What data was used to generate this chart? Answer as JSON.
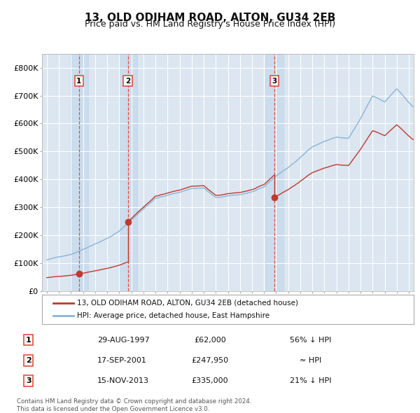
{
  "title": "13, OLD ODIHAM ROAD, ALTON, GU34 2EB",
  "subtitle": "Price paid vs. HM Land Registry's House Price Index (HPI)",
  "ylim": [
    0,
    850000
  ],
  "yticks": [
    0,
    100000,
    200000,
    300000,
    400000,
    500000,
    600000,
    700000,
    800000
  ],
  "ytick_labels": [
    "£0",
    "£100K",
    "£200K",
    "£300K",
    "£400K",
    "£500K",
    "£600K",
    "£700K",
    "£800K"
  ],
  "xlim_start": 1994.6,
  "xlim_end": 2025.4,
  "background_color": "#ffffff",
  "plot_bg_color": "#dce6f1",
  "grid_color": "#ffffff",
  "hpi_line_color": "#8ab4d8",
  "price_line_color": "#c0392b",
  "vline_color": "#e74c3c",
  "sale_marker_color": "#c0392b",
  "shade_color": "#c5d8ec",
  "title_fontsize": 11,
  "subtitle_fontsize": 9,
  "legend_label_price": "13, OLD ODIHAM ROAD, ALTON, GU34 2EB (detached house)",
  "legend_label_hpi": "HPI: Average price, detached house, East Hampshire",
  "sales": [
    {
      "date_year": 1997.66,
      "price": 62000,
      "label": "1"
    },
    {
      "date_year": 2001.71,
      "price": 247950,
      "label": "2"
    },
    {
      "date_year": 2013.87,
      "price": 335000,
      "label": "3"
    }
  ],
  "sale_annotations": [
    {
      "label": "1",
      "date_str": "29-AUG-1997",
      "price_str": "£62,000",
      "note": "56% ↓ HPI"
    },
    {
      "label": "2",
      "date_str": "17-SEP-2001",
      "price_str": "£247,950",
      "note": "≈ HPI"
    },
    {
      "label": "3",
      "date_str": "15-NOV-2013",
      "price_str": "£335,000",
      "note": "21% ↓ HPI"
    }
  ],
  "footer": "Contains HM Land Registry data © Crown copyright and database right 2024.\nThis data is licensed under the Open Government Licence v3.0.",
  "hpi_key_years": [
    1995.0,
    1996.0,
    1997.0,
    1998.0,
    1999.0,
    2000.0,
    2001.0,
    2002.0,
    2003.0,
    2004.0,
    2005.0,
    2006.0,
    2007.0,
    2008.0,
    2009.0,
    2010.0,
    2011.0,
    2012.0,
    2013.0,
    2014.0,
    2015.0,
    2016.0,
    2017.0,
    2018.0,
    2019.0,
    2020.0,
    2021.0,
    2022.0,
    2023.0,
    2024.0,
    2025.3
  ],
  "hpi_key_vals": [
    112000,
    122000,
    133000,
    152000,
    173000,
    193000,
    218000,
    258000,
    298000,
    337000,
    347000,
    358000,
    372000,
    374000,
    338000,
    343000,
    348000,
    358000,
    373000,
    413000,
    443000,
    478000,
    518000,
    538000,
    553000,
    548000,
    618000,
    698000,
    675000,
    725000,
    660000
  ]
}
